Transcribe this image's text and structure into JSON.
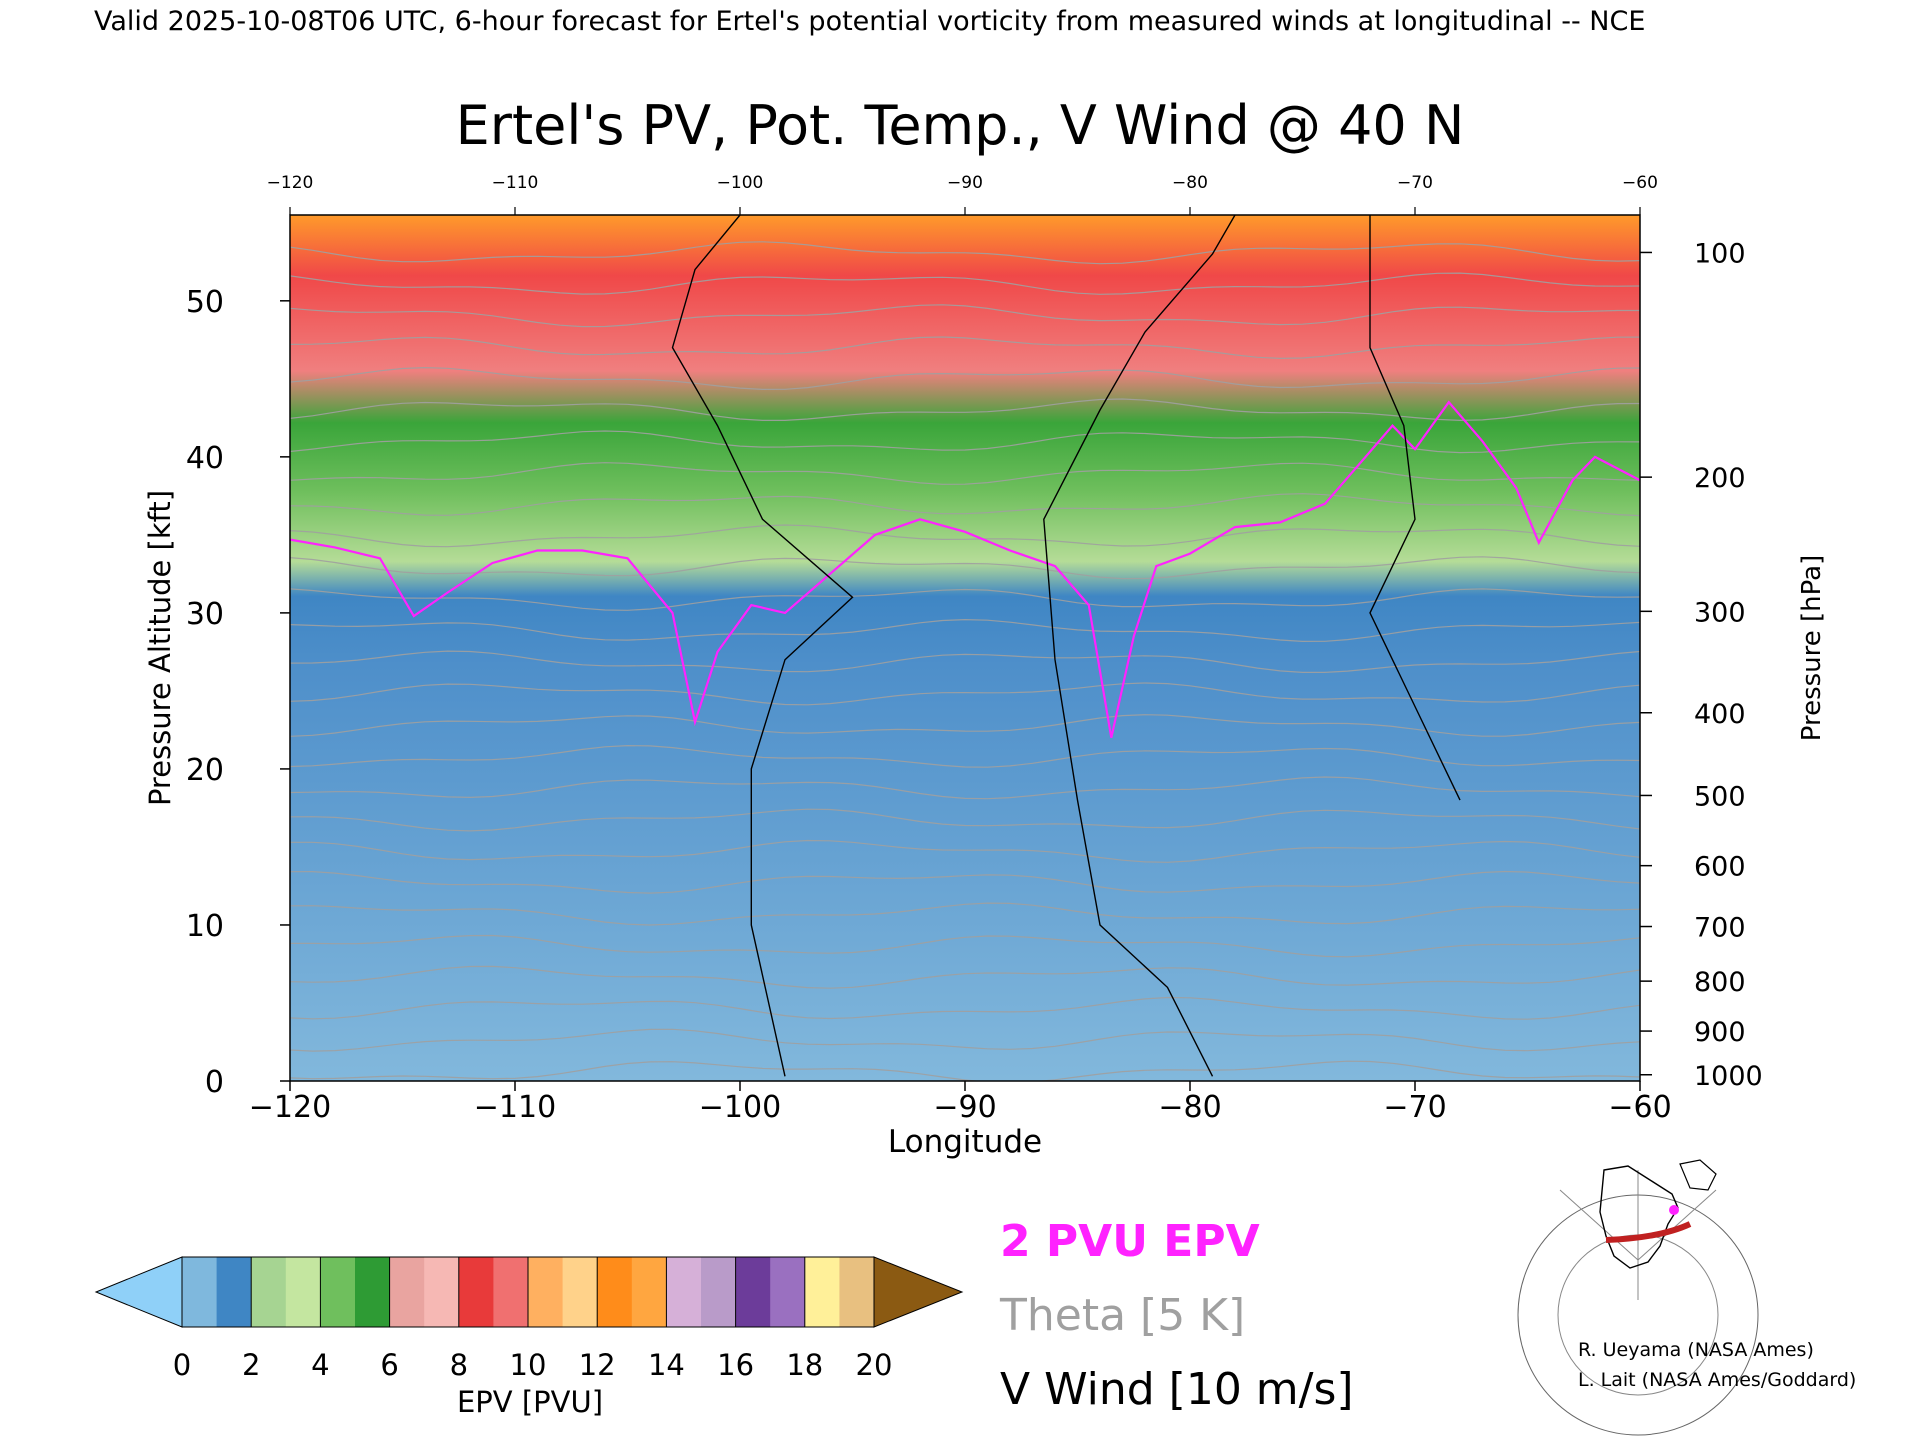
{
  "header": {
    "valid_line": "Valid 2025-10-08T06 UTC, 6-hour forecast for Ertel's potential vorticity from measured winds at longitudinal -- NCE"
  },
  "chart_data": {
    "type": "heatmap",
    "title": "Ertel's PV, Pot. Temp., V Wind @ 40 N",
    "xlabel": "Longitude",
    "ylabel_left": "Pressure Altitude [kft]",
    "ylabel_right": "Pressure [hPa]",
    "xlim": [
      -120,
      -60
    ],
    "ylim": [
      0,
      55.5
    ],
    "grid": false,
    "x_ticks": [
      -120,
      -110,
      -100,
      -90,
      -80,
      -70,
      -60
    ],
    "y_ticks": [
      0,
      10,
      20,
      30,
      40,
      50
    ],
    "pressure_ticks": [
      {
        "hPa": 100,
        "kft": 53.1
      },
      {
        "hPa": 200,
        "kft": 38.7
      },
      {
        "hPa": 300,
        "kft": 30.1
      },
      {
        "hPa": 400,
        "kft": 23.6
      },
      {
        "hPa": 500,
        "kft": 18.3
      },
      {
        "hPa": 600,
        "kft": 13.8
      },
      {
        "hPa": 700,
        "kft": 9.9
      },
      {
        "hPa": 800,
        "kft": 6.4
      },
      {
        "hPa": 900,
        "kft": 3.2
      },
      {
        "hPa": 1000,
        "kft": 0.4
      }
    ],
    "tropopause_2pvu_kft": [
      [
        -120,
        34.7
      ],
      [
        -118,
        34.2
      ],
      [
        -116,
        33.5
      ],
      [
        -114.5,
        29.8
      ],
      [
        -113,
        31.3
      ],
      [
        -111,
        33.2
      ],
      [
        -109,
        34.0
      ],
      [
        -107,
        34.0
      ],
      [
        -105,
        33.5
      ],
      [
        -103,
        30.0
      ],
      [
        -102,
        23.0
      ],
      [
        -101,
        27.5
      ],
      [
        -99.5,
        30.5
      ],
      [
        -98,
        30.0
      ],
      [
        -96,
        32.5
      ],
      [
        -94,
        35.0
      ],
      [
        -92,
        36.0
      ],
      [
        -90,
        35.2
      ],
      [
        -88,
        34.0
      ],
      [
        -86,
        33.0
      ],
      [
        -84.5,
        30.5
      ],
      [
        -83.5,
        22.0
      ],
      [
        -82.5,
        28.5
      ],
      [
        -81.5,
        33.0
      ],
      [
        -80,
        33.8
      ],
      [
        -78,
        35.5
      ],
      [
        -76,
        35.8
      ],
      [
        -74,
        37.0
      ],
      [
        -72.5,
        39.5
      ],
      [
        -71,
        42.0
      ],
      [
        -70,
        40.5
      ],
      [
        -68.5,
        43.5
      ],
      [
        -67,
        41.0
      ],
      [
        -65.5,
        38.0
      ],
      [
        -64.5,
        34.5
      ],
      [
        -63,
        38.5
      ],
      [
        -62,
        40.0
      ],
      [
        -60,
        38.5
      ]
    ],
    "theta_levels_K": [
      295,
      300,
      305,
      310,
      315,
      320,
      325,
      330,
      335,
      340,
      345,
      350,
      355,
      360,
      365,
      370,
      375,
      380,
      385,
      390,
      395,
      400,
      410,
      420,
      430,
      440,
      450
    ],
    "colorbar": {
      "label": "EPV [PVU]",
      "ticks": [
        0,
        2,
        4,
        6,
        8,
        10,
        12,
        14,
        16,
        18,
        20
      ],
      "colors": [
        "#8fd0f8",
        "#7fb8dd",
        "#3f86c4",
        "#a6d492",
        "#c4e6a0",
        "#6fbf5d",
        "#2e9b34",
        "#e9a4a0",
        "#f6b8b4",
        "#e83a3a",
        "#f07070",
        "#ffb060",
        "#ffd28a",
        "#ff8c1a",
        "#ffa640",
        "#d6b0d8",
        "#b99bc9",
        "#6c3c9a",
        "#9a70c0",
        "#fff099",
        "#e8c080",
        "#8b5a12"
      ]
    },
    "legend": {
      "pv_contour": "2 PVU EPV",
      "theta": "Theta [5 K]",
      "wind": "V Wind [10 m/s]",
      "pv_color": "#ff22ff",
      "theta_color": "#a0a0a0",
      "wind_color": "#000000"
    }
  },
  "credits": {
    "line1": "R. Ueyama (NASA Ames)",
    "line2": "L. Lait (NASA Ames/Goddard)"
  }
}
